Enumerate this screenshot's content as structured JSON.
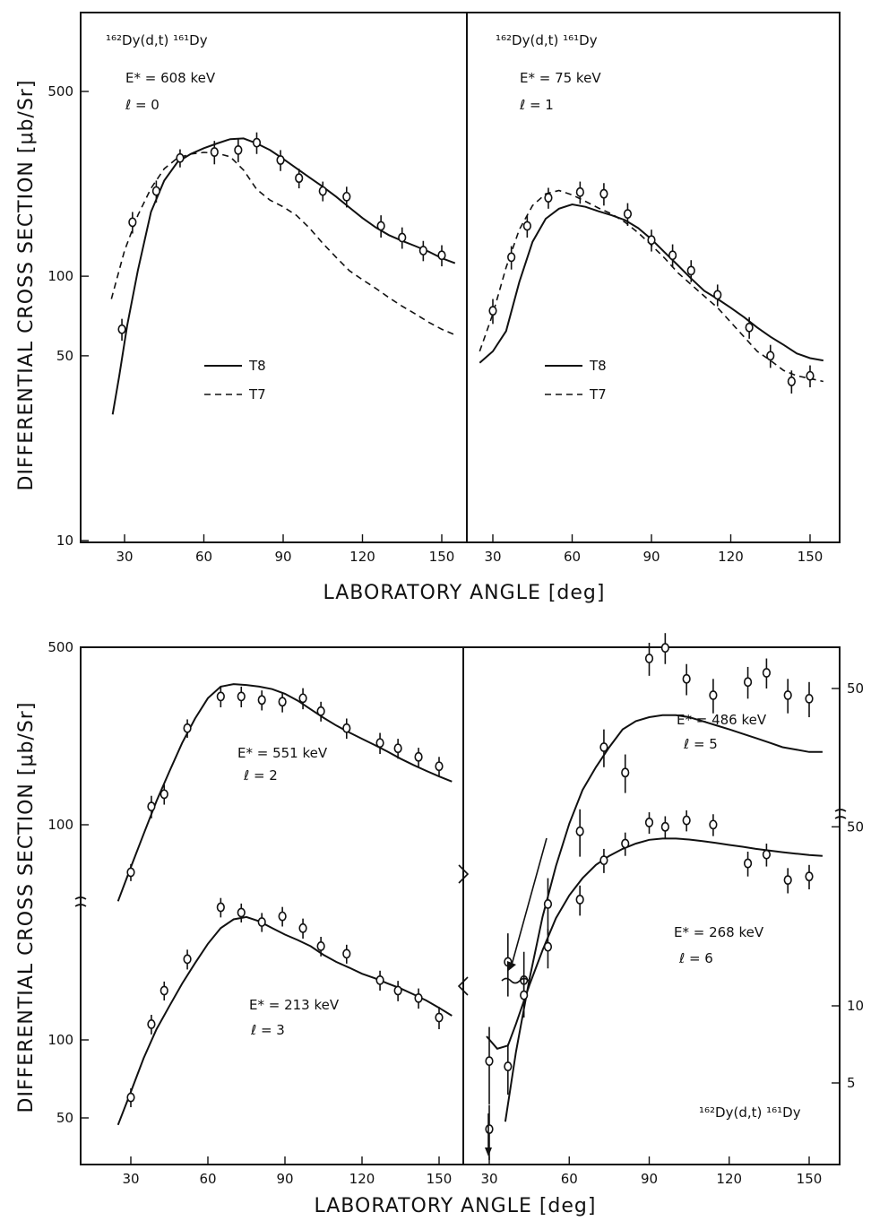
{
  "axis_titles": {
    "upper_x": "LABORATORY ANGLE [deg]",
    "upper_y": "DIFFERENTIAL CROSS SECTION [μb/Sr]",
    "lower_x": "LABORATORY ANGLE [deg]",
    "lower_y": "DIFFERENTIAL CROSS SECTION [μb/Sr]"
  },
  "panel_text": {
    "a_reaction": "¹⁶²Dy(d,t)  ¹⁶¹Dy",
    "a_energy": "E* = 608 keV",
    "a_l": "ℓ = 0",
    "a_legend_solid": "T8",
    "a_legend_dashed": "T7",
    "b_reaction": "¹⁶²Dy(d,t)  ¹⁶¹Dy",
    "b_energy": "E* = 75 keV",
    "b_l": "ℓ = 1",
    "b_legend_solid": "T8",
    "b_legend_dashed": "T7",
    "c_energy_top": "E* = 551 keV",
    "c_l_top": "ℓ = 2",
    "c_energy_bottom": "E* = 213 keV",
    "c_l_bottom": "ℓ = 3",
    "d_energy_top": "E* = 486 keV",
    "d_l_top": "ℓ = 5",
    "d_energy_bottom": "E* = 268 keV",
    "d_l_bottom": "ℓ = 6",
    "d_reaction": "¹⁶²Dy(d,t) ¹⁶¹Dy"
  },
  "colors": {
    "ink": "#111111",
    "paper": "#ffffff"
  },
  "chart_data": [
    {
      "id": "a",
      "type": "line",
      "yscale": "log",
      "xlabel": "LABORATORY ANGLE [deg]",
      "ylabel": "DIFFERENTIAL CROSS SECTION [μb/Sr]",
      "xlim": [
        15,
        160
      ],
      "ylim": [
        10,
        1000
      ],
      "xticks": [
        30,
        60,
        90,
        120,
        150
      ],
      "yticks": [
        10,
        50,
        100,
        500
      ],
      "series": [
        {
          "name": "T8",
          "style": "solid",
          "x": [
            25.5,
            28,
            31,
            35,
            40,
            45,
            50,
            55,
            60,
            65,
            70,
            75,
            80,
            85,
            90,
            95,
            100,
            105,
            110,
            115,
            120,
            125,
            130,
            135,
            140,
            145,
            150,
            155
          ],
          "y": [
            30,
            42,
            65,
            105,
            175,
            230,
            270,
            290,
            305,
            318,
            330,
            332,
            318,
            300,
            278,
            256,
            236,
            218,
            200,
            182,
            166,
            153,
            143,
            136,
            130,
            124,
            117,
            112
          ]
        },
        {
          "name": "T7",
          "style": "dashed",
          "x": [
            25,
            30,
            35,
            40,
            45,
            50,
            55,
            60,
            65,
            70,
            75,
            80,
            85,
            90,
            95,
            100,
            105,
            110,
            115,
            120,
            125,
            130,
            135,
            140,
            145,
            150,
            155
          ],
          "y": [
            82,
            125,
            170,
            215,
            255,
            280,
            290,
            294,
            292,
            283,
            252,
            213,
            194,
            183,
            170,
            152,
            133,
            118,
            105,
            97,
            90,
            83,
            77,
            72,
            67,
            63,
            60
          ]
        },
        {
          "name": "data",
          "style": "points",
          "x": [
            29,
            33,
            42,
            51,
            64,
            73,
            80,
            89,
            96,
            105,
            114,
            127,
            135,
            143,
            150
          ],
          "y": [
            63,
            160,
            210,
            280,
            295,
            300,
            320,
            275,
            235,
            210,
            200,
            155,
            140,
            125,
            120
          ],
          "err": [
            6,
            15,
            20,
            22,
            30,
            30,
            30,
            25,
            20,
            18,
            18,
            15,
            13,
            11,
            11
          ]
        }
      ]
    },
    {
      "id": "b",
      "type": "line",
      "yscale": "log",
      "xlabel": "LABORATORY ANGLE [deg]",
      "xlim": [
        20,
        160
      ],
      "ylim": [
        10,
        1000
      ],
      "xticks": [
        30,
        60,
        90,
        120,
        150
      ],
      "series": [
        {
          "name": "T8",
          "style": "solid",
          "x": [
            25,
            30,
            35,
            40,
            45,
            50,
            55,
            60,
            65,
            70,
            75,
            80,
            85,
            90,
            95,
            100,
            105,
            110,
            115,
            120,
            125,
            130,
            135,
            140,
            145,
            150,
            155
          ],
          "y": [
            47,
            52,
            62,
            95,
            135,
            165,
            180,
            187,
            183,
            176,
            170,
            163,
            152,
            138,
            123,
            110,
            98,
            88,
            82,
            76,
            70,
            64,
            59,
            55,
            51,
            49,
            48
          ]
        },
        {
          "name": "T7",
          "style": "dashed",
          "x": [
            25,
            30,
            35,
            40,
            45,
            50,
            55,
            60,
            65,
            70,
            75,
            80,
            85,
            90,
            95,
            100,
            105,
            110,
            115,
            120,
            125,
            130,
            135,
            140,
            145,
            150,
            155
          ],
          "y": [
            52,
            72,
            108,
            150,
            185,
            205,
            211,
            203,
            192,
            181,
            172,
            160,
            146,
            131,
            117,
            103,
            93,
            84,
            76,
            67,
            59,
            52,
            48,
            44,
            42,
            41,
            40
          ]
        },
        {
          "name": "data",
          "style": "points",
          "x": [
            30,
            37,
            43,
            51,
            63,
            72,
            81,
            90,
            98,
            105,
            115,
            127,
            135,
            143,
            150
          ],
          "y": [
            74,
            118,
            155,
            198,
            208,
            205,
            172,
            137,
            120,
            105,
            85,
            64,
            50,
            40,
            42
          ],
          "err": [
            8,
            12,
            15,
            18,
            20,
            20,
            17,
            13,
            12,
            10,
            8,
            6,
            5,
            4,
            4
          ]
        }
      ]
    },
    {
      "id": "c",
      "type": "line",
      "yscale": "log",
      "note": "two offset curves on a broken log axis",
      "xlabel": "LABORATORY ANGLE [deg]",
      "ylabel": "DIFFERENTIAL CROSS SECTION [μb/Sr]",
      "xlim": [
        15,
        160
      ],
      "xticks": [
        30,
        60,
        90,
        120,
        150
      ],
      "upper_yticks": [
        100,
        500
      ],
      "lower_yticks": [
        50,
        100
      ],
      "series": [
        {
          "name": "E* = 551 keV, ℓ = 2 (DWBA)",
          "style": "solid",
          "x": [
            25,
            30,
            35,
            40,
            45,
            50,
            55,
            60,
            65,
            70,
            75,
            80,
            85,
            90,
            95,
            100,
            105,
            110,
            115,
            120,
            125,
            130,
            135,
            140,
            145,
            150,
            155
          ],
          "y": [
            50,
            68,
            92,
            124,
            162,
            210,
            262,
            315,
            350,
            358,
            355,
            350,
            342,
            328,
            308,
            285,
            264,
            246,
            231,
            218,
            206,
            194,
            182,
            172,
            163,
            155,
            148
          ]
        },
        {
          "name": "E* = 551 keV, ℓ = 2 data",
          "style": "points",
          "x": [
            30,
            38,
            43,
            52,
            65,
            73,
            81,
            89,
            97,
            104,
            114,
            127,
            134,
            142,
            150
          ],
          "y": [
            65,
            118,
            132,
            240,
            320,
            320,
            310,
            305,
            315,
            280,
            240,
            210,
            200,
            185,
            170
          ],
          "err": [
            5,
            12,
            12,
            20,
            30,
            30,
            28,
            28,
            30,
            25,
            22,
            20,
            18,
            16,
            15
          ]
        },
        {
          "name": "E* = 213 keV, ℓ = 3 (DWBA)",
          "style": "solid",
          "x": [
            25,
            30,
            35,
            40,
            45,
            50,
            55,
            60,
            65,
            70,
            75,
            80,
            85,
            90,
            95,
            100,
            105,
            110,
            115,
            120,
            125,
            130,
            135,
            140,
            145,
            150,
            155
          ],
          "y": [
            47,
            63,
            85,
            110,
            135,
            165,
            198,
            235,
            270,
            292,
            298,
            287,
            270,
            255,
            243,
            230,
            213,
            200,
            190,
            180,
            173,
            165,
            158,
            150,
            142,
            133,
            124
          ]
        },
        {
          "name": "E* = 213 keV, ℓ = 3 data",
          "style": "points",
          "x": [
            30,
            38,
            43,
            52,
            65,
            73,
            81,
            89,
            97,
            104,
            114,
            127,
            134,
            142,
            150
          ],
          "y": [
            60,
            115,
            155,
            205,
            325,
            310,
            285,
            300,
            270,
            230,
            215,
            170,
            155,
            145,
            122
          ],
          "err": [
            5,
            10,
            13,
            18,
            28,
            26,
            24,
            26,
            24,
            20,
            18,
            15,
            14,
            13,
            12
          ]
        }
      ]
    },
    {
      "id": "d",
      "type": "line",
      "yscale": "log",
      "note": "two offset curves on a broken log axis",
      "xlabel": "LABORATORY ANGLE [deg]",
      "xlim": [
        20,
        160
      ],
      "xticks": [
        30,
        60,
        90,
        120,
        150
      ],
      "upper_yticks": [
        50
      ],
      "lower_yticks": [
        5,
        10,
        50
      ],
      "series": [
        {
          "name": "E* = 486 keV, ℓ = 5 (DWBA)",
          "style": "solid",
          "x": [
            36,
            40,
            45,
            50,
            55,
            60,
            65,
            70,
            75,
            80,
            85,
            90,
            95,
            100,
            105,
            110,
            115,
            120,
            125,
            130,
            135,
            140,
            145,
            150,
            155
          ],
          "y": [
            3.6,
            5.5,
            8.5,
            12.5,
            17,
            22,
            27,
            31,
            35,
            39,
            41,
            42,
            42.5,
            42.5,
            42,
            41,
            40,
            39,
            38,
            37,
            36,
            35,
            34.5,
            34,
            34
          ]
        },
        {
          "name": "E* = 486 keV, ℓ = 5 data",
          "style": "points",
          "x": [
            30,
            37,
            43,
            52,
            64,
            73,
            81,
            90,
            96,
            104,
            114,
            127,
            134,
            142,
            150
          ],
          "y": [
            5.2,
            9.5,
            8.5,
            13.5,
            21,
            35,
            30,
            60,
            64,
            53,
            48,
            52,
            55,
            48,
            47
          ],
          "err": [
            1.2,
            1.8,
            1.6,
            2.3,
            3,
            4,
            3.5,
            6,
            6,
            5,
            5,
            5,
            5,
            5,
            5
          ]
        },
        {
          "name": "E* = 268 keV, ℓ = 6 (DWBA)",
          "style": "solid",
          "x": [
            29,
            33,
            37,
            40,
            45,
            50,
            55,
            60,
            65,
            70,
            75,
            80,
            85,
            90,
            95,
            100,
            105,
            110,
            115,
            120,
            125,
            130,
            135,
            140,
            145,
            150,
            155
          ],
          "y": [
            7.6,
            6.8,
            7.0,
            8.5,
            12,
            16.5,
            22,
            27,
            31.5,
            35.5,
            38.5,
            41,
            43,
            44.5,
            45,
            45,
            44.6,
            44,
            43.3,
            42.5,
            41.8,
            41,
            40.4,
            39.8,
            39.3,
            38.8,
            38.5
          ]
        },
        {
          "name": "E* = 268 keV, ℓ = 6 data",
          "style": "points",
          "x": [
            30,
            37,
            43,
            52,
            64,
            73,
            81,
            90,
            96,
            104,
            114,
            127,
            134,
            142,
            150
          ],
          "y": [
            3.3,
            5.8,
            11,
            17,
            26,
            37,
            43,
            52,
            50,
            53,
            51,
            36,
            39,
            31,
            32
          ],
          "err": [
            0.8,
            1.3,
            2,
            3,
            3.5,
            4,
            4.5,
            5,
            5,
            5,
            5,
            4,
            4,
            3.5,
            3.5
          ]
        }
      ]
    }
  ]
}
